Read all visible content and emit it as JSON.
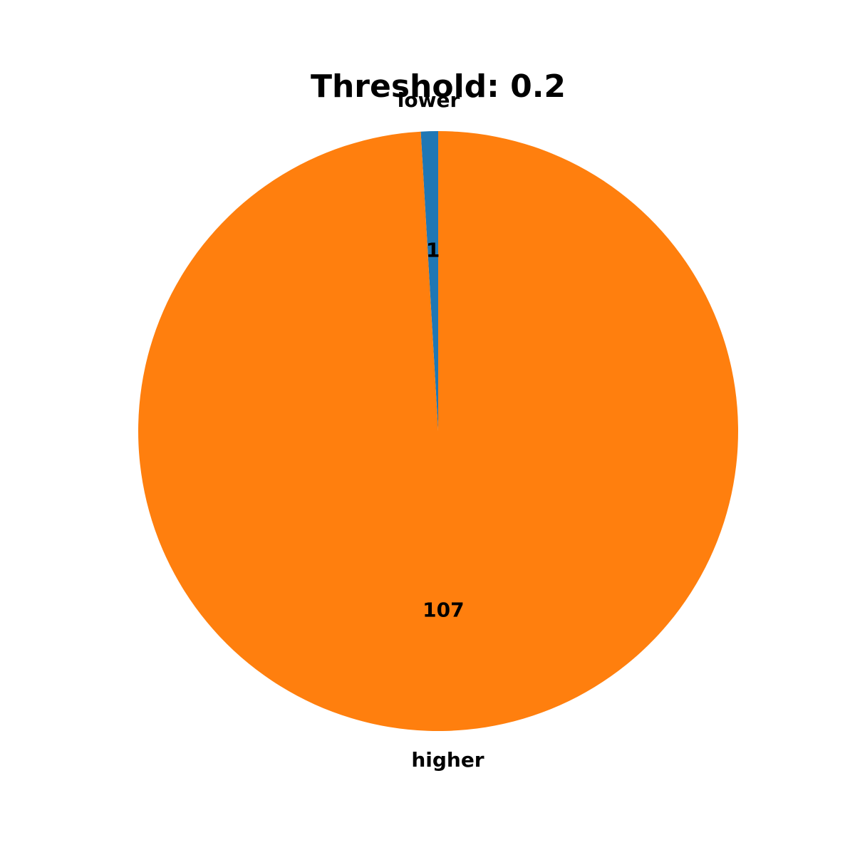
{
  "chart_data": {
    "type": "pie",
    "title": "Threshold: 0.2",
    "labels": [
      "lower",
      "higher"
    ],
    "values": [
      1,
      107
    ],
    "value_labels": [
      "1",
      "107"
    ],
    "colors": [
      "#1f77b4",
      "#ff7f0e"
    ],
    "start_angle_deg": 90,
    "direction": "counterclockwise"
  }
}
